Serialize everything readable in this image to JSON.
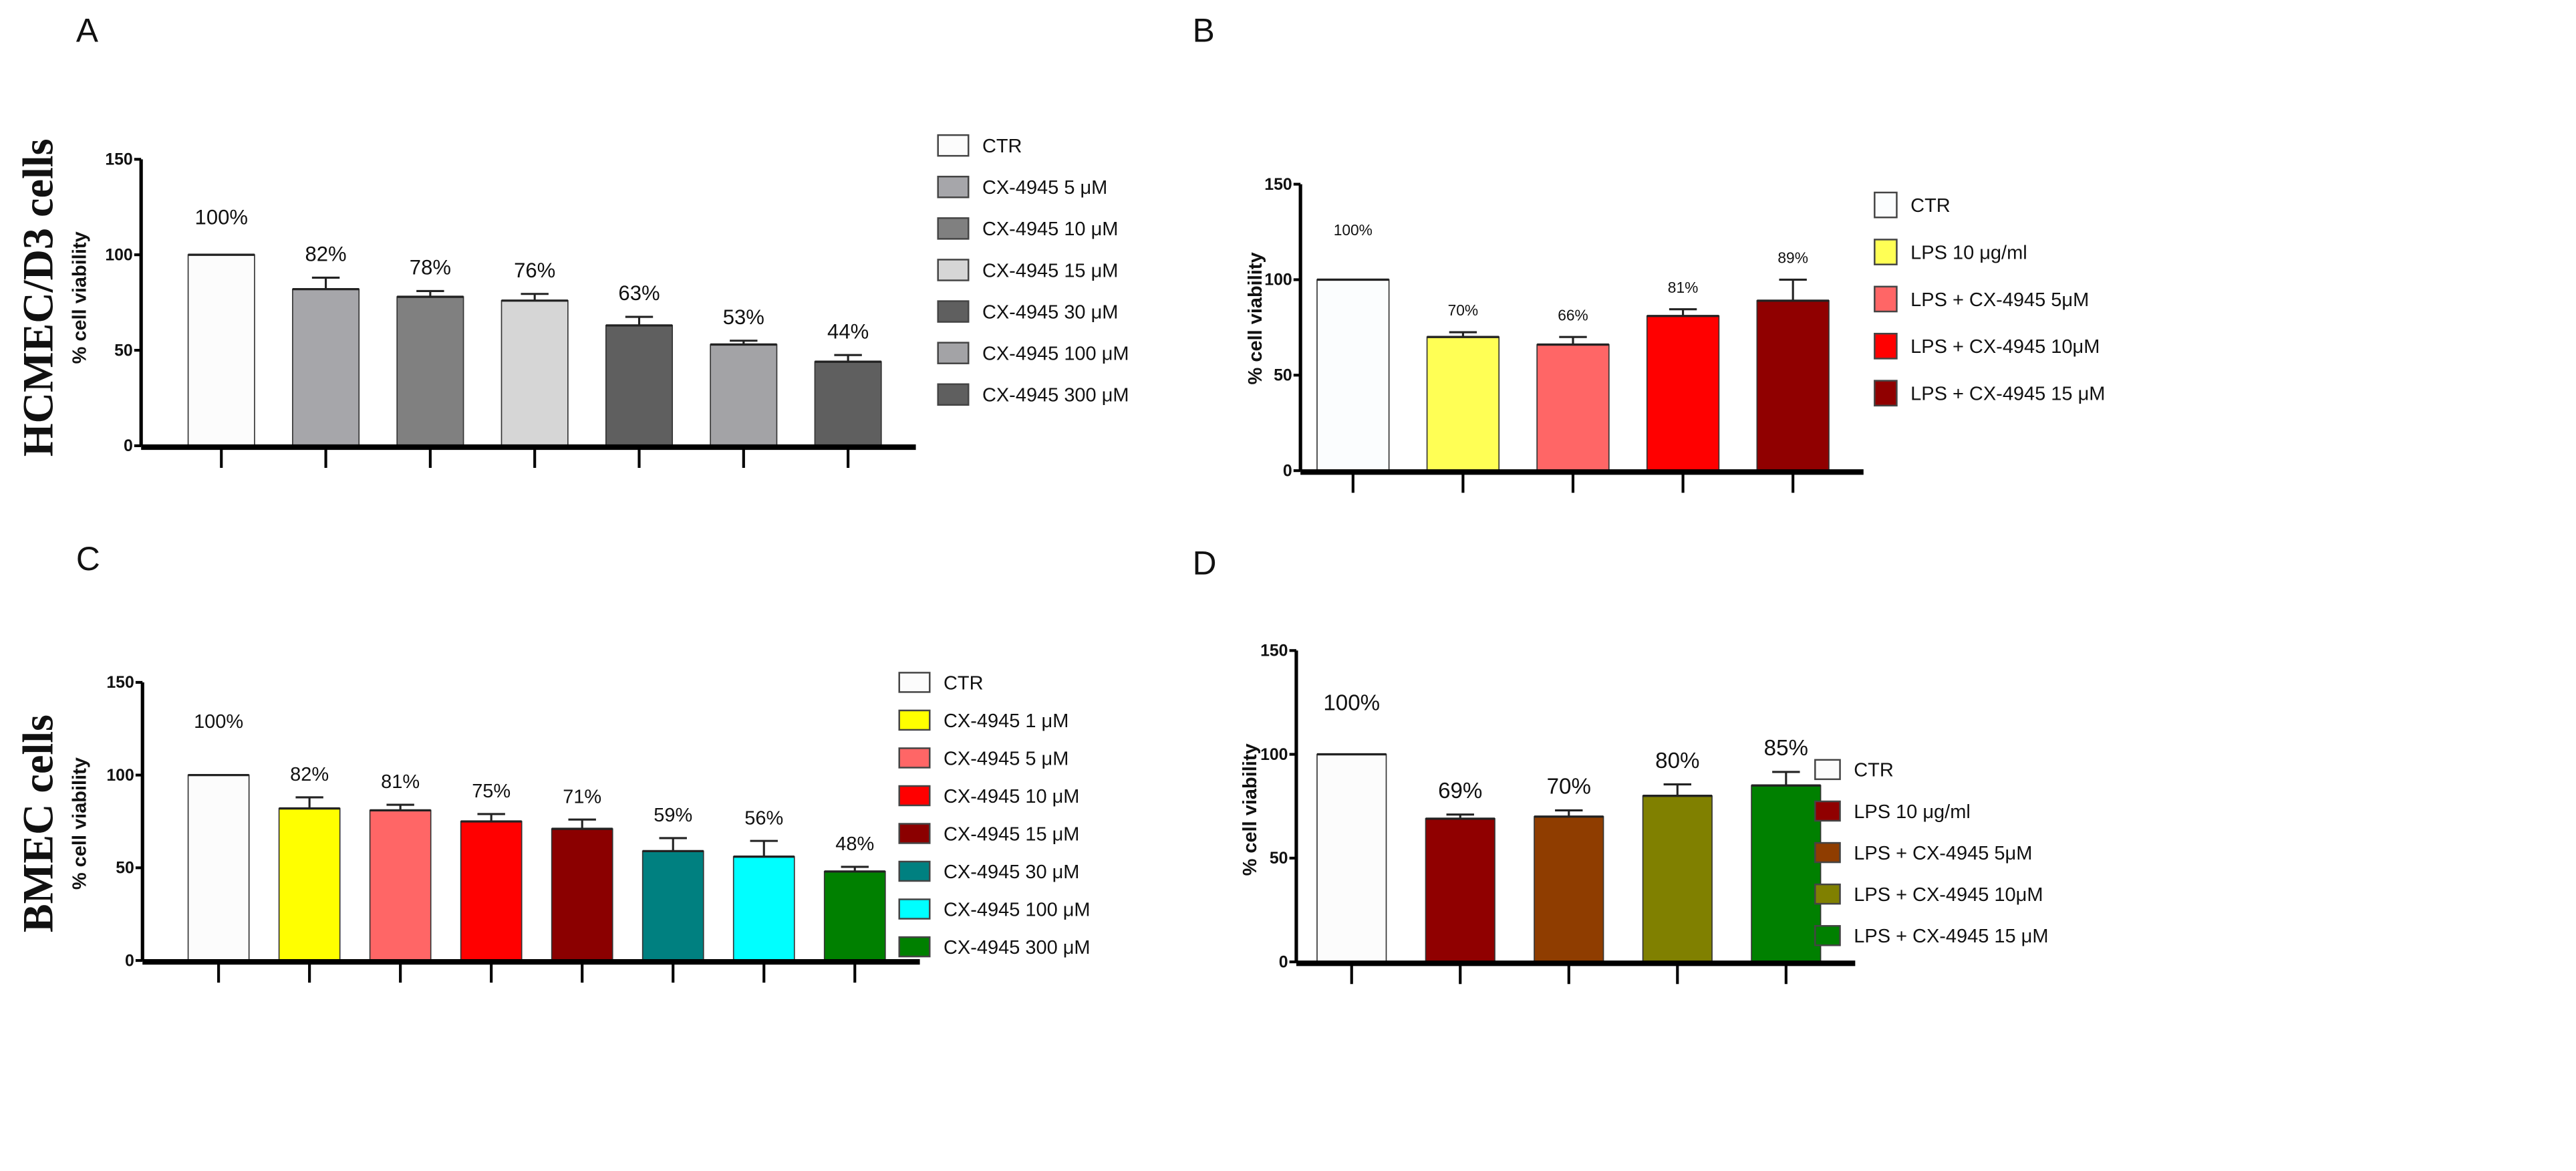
{
  "chart_data": [
    {
      "panel": "A",
      "type": "bar",
      "row_label": "HCMEC/D3 cells",
      "ylabel": "% cell viability",
      "ylim": [
        0,
        150
      ],
      "yticks": [
        0,
        50,
        100,
        150
      ],
      "categories": [
        "CTR",
        "CX-4945 5 μM",
        "CX-4945 10 μM",
        "CX-4945 15 μM",
        "CX-4945 30 μM",
        "CX-4945 100 μM",
        "CX-4945 300 μM"
      ],
      "values": [
        100,
        82,
        78,
        76,
        63,
        53,
        44
      ],
      "errors": [
        0,
        6,
        3,
        3.5,
        4.5,
        2,
        3.5
      ],
      "data_labels": [
        "100%",
        "82%",
        "78%",
        "76%",
        "63%",
        "53%",
        "44%"
      ],
      "colors": [
        "#fcfcfc",
        "#a6a6aa",
        "#808080",
        "#d6d6d6",
        "#5f5f5f",
        "#a3a3a6",
        "#5f5f5f"
      ],
      "legend": "right"
    },
    {
      "panel": "B",
      "type": "bar",
      "ylabel": "% cell viability",
      "ylim": [
        0,
        150
      ],
      "yticks": [
        0,
        50,
        100,
        150
      ],
      "categories": [
        "CTR",
        "LPS 10 μg/ml",
        "LPS + CX-4945 5μM",
        "LPS + CX-4945 10μM",
        "LPS + CX-4945 15 μM"
      ],
      "values": [
        100,
        70,
        66,
        81,
        89
      ],
      "errors": [
        0,
        2.5,
        4,
        3.5,
        11
      ],
      "data_labels": [
        "100%",
        "70%",
        "66%",
        "81%",
        "89%"
      ],
      "colors": [
        "#fbfdfe",
        "#ffff55",
        "#ff6666",
        "#ff0000",
        "#900000"
      ],
      "legend": "right"
    },
    {
      "panel": "C",
      "type": "bar",
      "row_label": "BMEC cells",
      "ylabel": "% cell viability",
      "ylim": [
        0,
        150
      ],
      "yticks": [
        0,
        50,
        100,
        150
      ],
      "categories": [
        "CTR",
        "CX-4945 1 μM",
        "CX-4945 5 μM",
        "CX-4945 10 μM",
        "CX-4945 15 μM",
        "CX-4945 30 μM",
        "CX-4945 100 μM",
        "CX-4945 300 μM"
      ],
      "values": [
        100,
        82,
        81,
        75,
        71,
        59,
        56,
        48
      ],
      "errors": [
        0,
        6,
        3,
        4,
        5,
        7,
        8.5,
        2.5
      ],
      "data_labels": [
        "100%",
        "82%",
        "81%",
        "75%",
        "71%",
        "59%",
        "56%",
        "48%"
      ],
      "colors": [
        "#fcfcfc",
        "#ffff00",
        "#ff6666",
        "#ff0000",
        "#8b0000",
        "#008080",
        "#00ffff",
        "#008000"
      ],
      "legend": "right"
    },
    {
      "panel": "D",
      "type": "bar",
      "ylabel": "% cell viability",
      "ylim": [
        0,
        150
      ],
      "yticks": [
        0,
        50,
        100,
        150
      ],
      "categories": [
        "CTR",
        "LPS 10 μg/ml",
        "LPS + CX-4945 5μM",
        "LPS + CX-4945 10μM",
        "LPS + CX-4945 15 μM"
      ],
      "values": [
        100,
        69,
        70,
        80,
        85
      ],
      "errors": [
        0,
        2,
        3,
        5.5,
        6.5
      ],
      "data_labels": [
        "100%",
        "69%",
        "70%",
        "80%",
        "85%"
      ],
      "colors": [
        "#fcfcfc",
        "#900000",
        "#8f3d00",
        "#808000",
        "#008000"
      ],
      "legend": "right"
    }
  ]
}
